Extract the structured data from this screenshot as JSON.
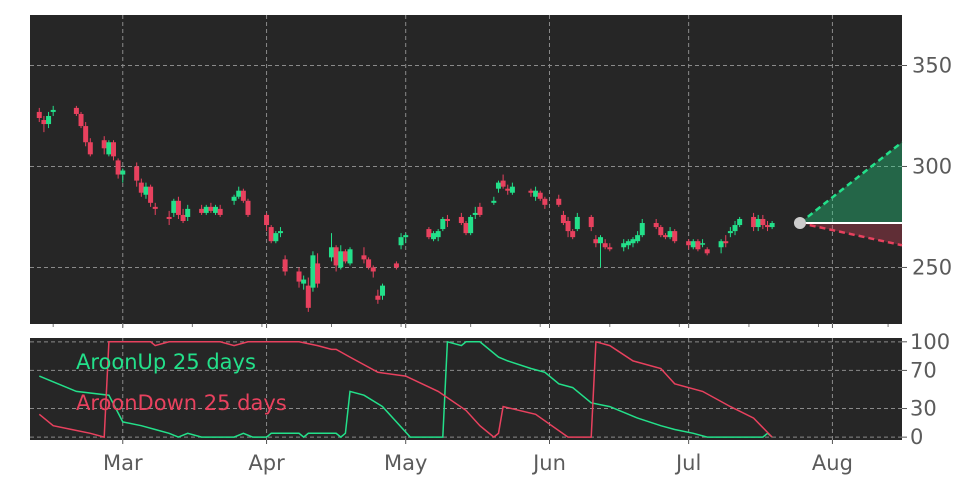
{
  "colors": {
    "up": "#23e08a",
    "down": "#e8415e",
    "panel_bg": "#262626",
    "grid": "#8a8a8a",
    "tick_text": "#5b5b5b",
    "marker": "#cccccc"
  },
  "chart_data": [
    {
      "type": "candlestick",
      "grid": true,
      "ylim": [
        222,
        375
      ],
      "yticks": [
        250,
        300,
        350
      ],
      "x_months": [
        "Mar",
        "Apr",
        "May",
        "Jun",
        "Jul",
        "Aug"
      ],
      "candles": [
        [
          "2024-02-12",
          327,
          329,
          322,
          324
        ],
        [
          "2024-02-13",
          323,
          325,
          317,
          321
        ],
        [
          "2024-02-14",
          321,
          327,
          319,
          325
        ],
        [
          "2024-02-15",
          327,
          330,
          325,
          328
        ],
        [
          "2024-02-20",
          329,
          330,
          325,
          326
        ],
        [
          "2024-02-21",
          326,
          327,
          319,
          320
        ],
        [
          "2024-02-22",
          320,
          322,
          310,
          312
        ],
        [
          "2024-02-23",
          312,
          314,
          305,
          306
        ],
        [
          "2024-02-26",
          313,
          315,
          306,
          309
        ],
        [
          "2024-02-27",
          306,
          313,
          305,
          312
        ],
        [
          "2024-02-28",
          312,
          313,
          303,
          305
        ],
        [
          "2024-02-29",
          303,
          304,
          294,
          296
        ],
        [
          "2024-03-01",
          296,
          299,
          292,
          298
        ],
        [
          "2024-03-04",
          300,
          302,
          290,
          293
        ],
        [
          "2024-03-05",
          292,
          294,
          285,
          287
        ],
        [
          "2024-03-06",
          286,
          292,
          284,
          290
        ],
        [
          "2024-03-07",
          290,
          291,
          280,
          282
        ],
        [
          "2024-03-08",
          280,
          282,
          276,
          279
        ],
        [
          "2024-03-11",
          275,
          278,
          271,
          274
        ],
        [
          "2024-03-12",
          277,
          284,
          275,
          283
        ],
        [
          "2024-03-13",
          283,
          285,
          274,
          276
        ],
        [
          "2024-03-14",
          276,
          279,
          272,
          273
        ],
        [
          "2024-03-15",
          275,
          281,
          273,
          279
        ],
        [
          "2024-03-18",
          279,
          281,
          276,
          277
        ],
        [
          "2024-03-19",
          277,
          281,
          276,
          280
        ],
        [
          "2024-03-20",
          280,
          282,
          277,
          278
        ],
        [
          "2024-03-21",
          277,
          281,
          276,
          280
        ],
        [
          "2024-03-22",
          279,
          281,
          275,
          276
        ],
        [
          "2024-03-25",
          283,
          286,
          281,
          285
        ],
        [
          "2024-03-26",
          285,
          290,
          284,
          288
        ],
        [
          "2024-03-27",
          288,
          289,
          282,
          283
        ],
        [
          "2024-03-28",
          283,
          284,
          275,
          276
        ],
        [
          "2024-04-01",
          276,
          277,
          268,
          271
        ],
        [
          "2024-04-02",
          270,
          271,
          262,
          263
        ],
        [
          "2024-04-03",
          263,
          268,
          262,
          267
        ],
        [
          "2024-04-04",
          267,
          270,
          265,
          268
        ],
        [
          "2024-04-05",
          254,
          256,
          246,
          248
        ],
        [
          "2024-04-08",
          248,
          250,
          240,
          243
        ],
        [
          "2024-04-09",
          242,
          246,
          239,
          244
        ],
        [
          "2024-04-10",
          241,
          245,
          228,
          230
        ],
        [
          "2024-04-11",
          240,
          258,
          238,
          256
        ],
        [
          "2024-04-12",
          252,
          257,
          240,
          242
        ],
        [
          "2024-04-15",
          255,
          267,
          253,
          260
        ],
        [
          "2024-04-16",
          260,
          261,
          248,
          251
        ],
        [
          "2024-04-17",
          250,
          261,
          249,
          258
        ],
        [
          "2024-04-18",
          258,
          259,
          252,
          253
        ],
        [
          "2024-04-19",
          252,
          260,
          251,
          259
        ],
        [
          "2024-04-22",
          256,
          260,
          252,
          254
        ],
        [
          "2024-04-23",
          254,
          255,
          249,
          250
        ],
        [
          "2024-04-24",
          250,
          251,
          245,
          248
        ],
        [
          "2024-04-25",
          236,
          239,
          232,
          234
        ],
        [
          "2024-04-26",
          236,
          242,
          234,
          241
        ],
        [
          "2024-04-29",
          252,
          253,
          249,
          250
        ],
        [
          "2024-04-30",
          261,
          267,
          259,
          265
        ],
        [
          "2024-05-01",
          265,
          267,
          262,
          266
        ],
        [
          "2024-05-06",
          269,
          270,
          264,
          265
        ],
        [
          "2024-05-07",
          264,
          268,
          263,
          267
        ],
        [
          "2024-05-08",
          265,
          269,
          263,
          268
        ],
        [
          "2024-05-09",
          269,
          275,
          268,
          274
        ],
        [
          "2024-05-10",
          274,
          276,
          270,
          273
        ],
        [
          "2024-05-13",
          275,
          277,
          271,
          272
        ],
        [
          "2024-05-14",
          272,
          273,
          266,
          267
        ],
        [
          "2024-05-15",
          267,
          276,
          266,
          275
        ],
        [
          "2024-05-16",
          276,
          280,
          274,
          277
        ],
        [
          "2024-05-17",
          280,
          282,
          275,
          276
        ],
        [
          "2024-05-20",
          282,
          285,
          281,
          283
        ],
        [
          "2024-05-21",
          289,
          293,
          287,
          292
        ],
        [
          "2024-05-22",
          293,
          296,
          289,
          290
        ],
        [
          "2024-05-23",
          289,
          291,
          286,
          288
        ],
        [
          "2024-05-24",
          287,
          292,
          286,
          290
        ],
        [
          "2024-05-28",
          288,
          289,
          285,
          287
        ],
        [
          "2024-05-29",
          285,
          290,
          283,
          288
        ],
        [
          "2024-05-30",
          287,
          288,
          283,
          284
        ],
        [
          "2024-05-31",
          284,
          285,
          279,
          281
        ],
        [
          "2024-06-03",
          284,
          286,
          280,
          281
        ],
        [
          "2024-06-04",
          276,
          278,
          271,
          272
        ],
        [
          "2024-06-05",
          273,
          275,
          265,
          268
        ],
        [
          "2024-06-06",
          268,
          269,
          264,
          265
        ],
        [
          "2024-06-07",
          269,
          277,
          268,
          275
        ],
        [
          "2024-06-10",
          275,
          276,
          268,
          270
        ],
        [
          "2024-06-11",
          264,
          266,
          260,
          262
        ],
        [
          "2024-06-12",
          262,
          266,
          250,
          265
        ],
        [
          "2024-06-13",
          262,
          264,
          259,
          260
        ],
        [
          "2024-06-14",
          260,
          262,
          258,
          259
        ],
        [
          "2024-06-17",
          260,
          264,
          258,
          262
        ],
        [
          "2024-06-18",
          261,
          264,
          259,
          263
        ],
        [
          "2024-06-19",
          262,
          265,
          260,
          264
        ],
        [
          "2024-06-20",
          263,
          268,
          262,
          266
        ],
        [
          "2024-06-21",
          266,
          274,
          265,
          272
        ],
        [
          "2024-06-24",
          272,
          274,
          269,
          270
        ],
        [
          "2024-06-25",
          270,
          271,
          265,
          266
        ],
        [
          "2024-06-26",
          266,
          267,
          264,
          265
        ],
        [
          "2024-06-27",
          265,
          270,
          264,
          268
        ],
        [
          "2024-06-28",
          268,
          269,
          262,
          263
        ],
        [
          "2024-07-01",
          263,
          264,
          259,
          261
        ],
        [
          "2024-07-02",
          260,
          264,
          259,
          263
        ],
        [
          "2024-07-03",
          263,
          264,
          258,
          259
        ],
        [
          "2024-07-04",
          262,
          264,
          260,
          262
        ],
        [
          "2024-07-05",
          259,
          260,
          256,
          257
        ],
        [
          "2024-07-08",
          260,
          264,
          257,
          263
        ],
        [
          "2024-07-09",
          263,
          266,
          260,
          262
        ],
        [
          "2024-07-10",
          267,
          270,
          265,
          268
        ],
        [
          "2024-07-11",
          268,
          273,
          266,
          271
        ],
        [
          "2024-07-12",
          271,
          275,
          270,
          274
        ],
        [
          "2024-07-15",
          275,
          277,
          268,
          270
        ],
        [
          "2024-07-16",
          270,
          276,
          268,
          274
        ],
        [
          "2024-07-17",
          274,
          276,
          269,
          271
        ],
        [
          "2024-07-18",
          271,
          273,
          268,
          270
        ],
        [
          "2024-07-19",
          270,
          273,
          269,
          272
        ]
      ],
      "forecast": {
        "start_date": "2024-07-25",
        "end_date": "2024-08-13",
        "start_value": 272,
        "upper_end": 312,
        "lower_end": 261
      }
    },
    {
      "type": "line",
      "grid": true,
      "ylim": [
        -3,
        104
      ],
      "yticks": [
        0,
        30,
        70,
        100
      ],
      "series": [
        {
          "name": "AroonUp 25 days",
          "color": "#23e08a",
          "x": [
            "2024-02-12",
            "2024-02-20",
            "2024-02-27",
            "2024-03-01",
            "2024-03-05",
            "2024-03-08",
            "2024-03-11",
            "2024-03-13",
            "2024-03-15",
            "2024-03-18",
            "2024-03-21",
            "2024-03-25",
            "2024-03-27",
            "2024-03-29",
            "2024-04-01",
            "2024-04-02",
            "2024-04-05",
            "2024-04-08",
            "2024-04-09",
            "2024-04-10",
            "2024-04-11",
            "2024-04-15",
            "2024-04-16",
            "2024-04-17",
            "2024-04-18",
            "2024-04-19",
            "2024-04-22",
            "2024-04-26",
            "2024-05-02",
            "2024-05-06",
            "2024-05-09",
            "2024-05-10",
            "2024-05-13",
            "2024-05-14",
            "2024-05-17",
            "2024-05-21",
            "2024-05-23",
            "2024-05-28",
            "2024-05-31",
            "2024-06-03",
            "2024-06-06",
            "2024-06-10",
            "2024-06-14",
            "2024-06-20",
            "2024-06-25",
            "2024-06-28",
            "2024-07-02",
            "2024-07-05",
            "2024-07-08",
            "2024-07-11",
            "2024-07-15",
            "2024-07-17",
            "2024-07-18",
            "2024-07-19"
          ],
          "values": [
            64,
            48,
            44,
            16,
            12,
            8,
            4,
            0,
            4,
            0,
            0,
            0,
            4,
            0,
            0,
            4,
            4,
            4,
            0,
            4,
            4,
            4,
            4,
            0,
            4,
            48,
            44,
            32,
            0,
            0,
            0,
            100,
            96,
            100,
            100,
            84,
            80,
            72,
            68,
            56,
            52,
            36,
            32,
            20,
            12,
            8,
            4,
            0,
            0,
            0,
            0,
            0,
            4,
            0
          ]
        },
        {
          "name": "AroonDown 25 days",
          "color": "#e8415e",
          "x": [
            "2024-02-12",
            "2024-02-15",
            "2024-02-19",
            "2024-02-23",
            "2024-02-26",
            "2024-02-27",
            "2024-03-01",
            "2024-03-07",
            "2024-03-08",
            "2024-03-11",
            "2024-03-22",
            "2024-03-25",
            "2024-03-28",
            "2024-04-01",
            "2024-04-08",
            "2024-04-12",
            "2024-04-15",
            "2024-04-16",
            "2024-04-19",
            "2024-04-25",
            "2024-05-01",
            "2024-05-08",
            "2024-05-14",
            "2024-05-17",
            "2024-05-20",
            "2024-05-21",
            "2024-05-22",
            "2024-05-29",
            "2024-06-05",
            "2024-06-10",
            "2024-06-11",
            "2024-06-14",
            "2024-06-19",
            "2024-06-25",
            "2024-06-28",
            "2024-07-04",
            "2024-07-10",
            "2024-07-15",
            "2024-07-19"
          ],
          "values": [
            24,
            12,
            8,
            4,
            0,
            100,
            100,
            100,
            96,
            100,
            100,
            96,
            100,
            100,
            100,
            96,
            92,
            92,
            84,
            68,
            64,
            48,
            28,
            12,
            0,
            4,
            32,
            24,
            0,
            0,
            100,
            96,
            80,
            72,
            56,
            48,
            32,
            20,
            0
          ]
        }
      ],
      "legend": [
        "AroonUp 25 days",
        "AroonDown 25 days"
      ],
      "legend_placement": "top-left"
    }
  ]
}
